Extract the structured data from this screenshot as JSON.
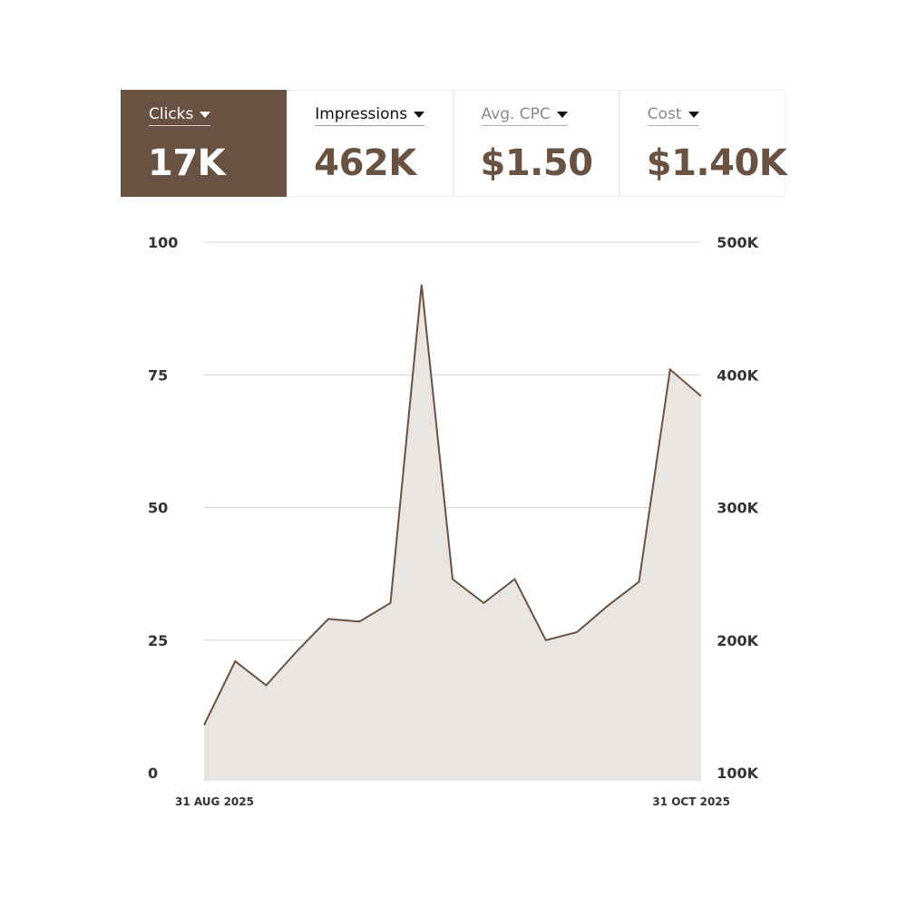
{
  "metrics": [
    {
      "label": "Clicks",
      "value": "17K",
      "active": true
    },
    {
      "label": "Impressions",
      "value": "462K",
      "active": false
    },
    {
      "label": "Avg. CPC",
      "value": "$1.50",
      "active": false
    },
    {
      "label": "Cost",
      "value": "$1.40K",
      "active": false
    }
  ],
  "colors": {
    "accent": "#6a5242",
    "area_fill": "#e9e5e2",
    "grid": "#d6d6d6",
    "axis_text": "#333333"
  },
  "chart_data": {
    "type": "area",
    "x_start_label": "31 AUG 2025",
    "x_end_label": "31 OCT 2025",
    "left_axis": {
      "ticks": [
        0,
        25,
        50,
        75,
        100
      ],
      "tick_labels": [
        "0",
        "25",
        "50",
        "75",
        "100"
      ],
      "range": [
        0,
        100
      ]
    },
    "right_axis": {
      "ticks": [
        100000,
        200000,
        300000,
        400000,
        500000
      ],
      "tick_labels": [
        "100K",
        "200K",
        "300K",
        "400K",
        "500K"
      ],
      "range": [
        100000,
        500000
      ]
    },
    "grid": true,
    "series": [
      {
        "values": [
          9,
          21,
          16.5,
          23,
          29,
          28.5,
          32,
          92,
          36.5,
          32,
          36.5,
          25,
          26.5,
          31.5,
          36,
          76,
          71
        ],
        "axis": "left"
      }
    ]
  }
}
